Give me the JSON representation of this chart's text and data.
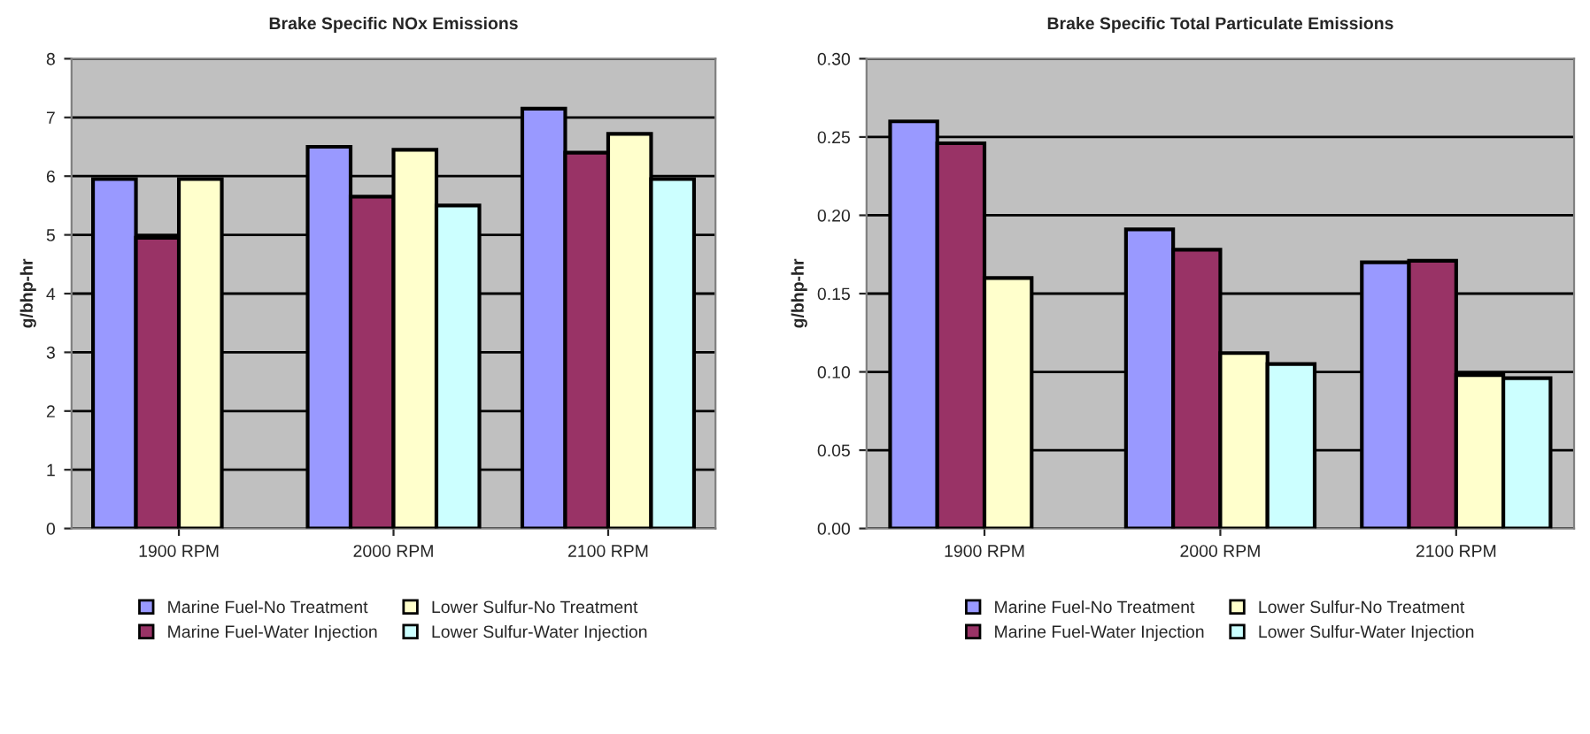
{
  "chart_data": [
    {
      "type": "bar",
      "title": "Brake Specific NOx Emissions",
      "ylabel": "g/bhp-hr",
      "categories": [
        "1900 RPM",
        "2000 RPM",
        "2100 RPM"
      ],
      "series": [
        {
          "name": "Marine Fuel-No Treatment",
          "color": "#9999ff",
          "values": [
            5.95,
            6.5,
            7.15
          ]
        },
        {
          "name": "Marine Fuel-Water Injection",
          "color": "#993366",
          "values": [
            4.95,
            5.65,
            6.4
          ]
        },
        {
          "name": "Lower Sulfur-No Treatment",
          "color": "#ffffcc",
          "values": [
            5.95,
            6.45,
            6.72
          ]
        },
        {
          "name": "Lower Sulfur-Water Injection",
          "color": "#ccffff",
          "values": [
            null,
            5.5,
            5.95
          ]
        }
      ],
      "ylim": [
        0,
        8
      ],
      "yticks": [
        0,
        1,
        2,
        3,
        4,
        5,
        6,
        7,
        8
      ],
      "grid": "y",
      "legend": "bottom"
    },
    {
      "type": "bar",
      "title": "Brake Specific Total Particulate Emissions",
      "ylabel": "g/bhp-hr",
      "categories": [
        "1900 RPM",
        "2000 RPM",
        "2100 RPM"
      ],
      "series": [
        {
          "name": "Marine Fuel-No Treatment",
          "color": "#9999ff",
          "values": [
            0.26,
            0.191,
            0.17
          ]
        },
        {
          "name": "Marine Fuel-Water Injection",
          "color": "#993366",
          "values": [
            0.246,
            0.178,
            0.171
          ]
        },
        {
          "name": "Lower Sulfur-No Treatment",
          "color": "#ffffcc",
          "values": [
            0.16,
            0.112,
            0.098
          ]
        },
        {
          "name": "Lower Sulfur-Water Injection",
          "color": "#ccffff",
          "values": [
            null,
            0.105,
            0.096
          ]
        }
      ],
      "ylim": [
        0,
        0.3
      ],
      "yticks": [
        {
          "value": 0,
          "label": "0.00"
        },
        {
          "value": 0.05,
          "label": "0.05"
        },
        {
          "value": 0.1,
          "label": "0.10"
        },
        {
          "value": 0.15,
          "label": "0.15"
        },
        {
          "value": 0.2,
          "label": "0.20"
        },
        {
          "value": 0.25,
          "label": "0.25"
        },
        {
          "value": 0.3,
          "label": "0.30"
        }
      ],
      "grid": "y",
      "legend": "bottom"
    }
  ]
}
